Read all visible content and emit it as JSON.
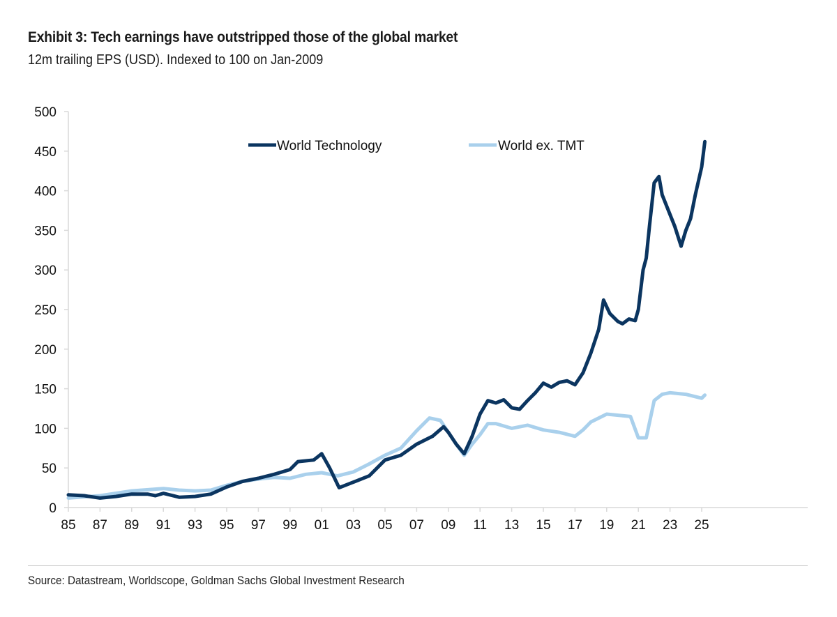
{
  "header": {
    "title": "Exhibit 3: Tech earnings have outstripped those of the global market",
    "subtitle": "12m trailing EPS (USD). Indexed to 100 on Jan-2009"
  },
  "footer": {
    "source": "Source: Datastream, Worldscope, Goldman Sachs Global Investment Research"
  },
  "chart_data": {
    "type": "line",
    "title": "Exhibit 3: Tech earnings have outstripped those of the global market",
    "subtitle": "12m trailing EPS (USD). Indexed to 100 on Jan-2009",
    "xlabel": "",
    "ylabel": "",
    "xlim": [
      1985,
      2026.3
    ],
    "ylim": [
      0,
      500
    ],
    "yticks": [
      0,
      50,
      100,
      150,
      200,
      250,
      300,
      350,
      400,
      450,
      500
    ],
    "xticks": [
      1985,
      1987,
      1989,
      1991,
      1993,
      1995,
      1997,
      1999,
      2001,
      2003,
      2005,
      2007,
      2009,
      2011,
      2013,
      2015,
      2017,
      2019,
      2021,
      2023,
      2025
    ],
    "xtick_labels": [
      "85",
      "87",
      "89",
      "91",
      "93",
      "95",
      "97",
      "99",
      "01",
      "03",
      "05",
      "07",
      "09",
      "11",
      "13",
      "15",
      "17",
      "19",
      "21",
      "23",
      "25"
    ],
    "grid": false,
    "legend": "top-center",
    "series": [
      {
        "name": "World Technology",
        "color": "#0b3560",
        "x": [
          1985,
          1986,
          1987,
          1988,
          1989,
          1990,
          1990.5,
          1991,
          1992,
          1993,
          1994,
          1995,
          1996,
          1997,
          1998,
          1999,
          1999.5,
          2000.5,
          2001,
          2001.5,
          2002.1,
          2003,
          2004,
          2005,
          2006,
          2007,
          2008,
          2008.7,
          2009,
          2009.5,
          2010,
          2010.5,
          2011,
          2011.5,
          2012,
          2012.5,
          2013,
          2013.5,
          2014,
          2014.5,
          2015,
          2015.5,
          2016,
          2016.5,
          2017,
          2017.5,
          2018,
          2018.5,
          2018.8,
          2019.2,
          2019.7,
          2020,
          2020.4,
          2020.8,
          2021,
          2021.3,
          2021.5,
          2021.7,
          2022,
          2022.3,
          2022.5,
          2023,
          2023.3,
          2023.7,
          2024,
          2024.3,
          2024.6,
          2025,
          2025.2
        ],
        "values": [
          16,
          15,
          12,
          14,
          17,
          17,
          15,
          18,
          13,
          14,
          17,
          26,
          33,
          37,
          42,
          48,
          58,
          60,
          68,
          50,
          25,
          32,
          40,
          60,
          66,
          80,
          90,
          102,
          95,
          80,
          68,
          90,
          118,
          135,
          132,
          136,
          126,
          124,
          135,
          145,
          157,
          152,
          158,
          160,
          155,
          170,
          195,
          225,
          262,
          245,
          235,
          232,
          238,
          236,
          250,
          300,
          315,
          355,
          410,
          418,
          395,
          370,
          355,
          330,
          350,
          365,
          395,
          430,
          462
        ]
      },
      {
        "name": "World ex. TMT",
        "color": "#a9d0ec",
        "x": [
          1985,
          1987,
          1989,
          1991,
          1992,
          1993,
          1994,
          1995,
          1996,
          1997,
          1998,
          1999,
          2000,
          2001,
          2002,
          2003,
          2004,
          2005,
          2006,
          2007,
          2007.8,
          2008.5,
          2009,
          2009.5,
          2010,
          2010.5,
          2011,
          2011.5,
          2012,
          2013,
          2014,
          2015,
          2016,
          2017,
          2017.5,
          2018,
          2019,
          2020,
          2020.5,
          2021,
          2021.5,
          2022,
          2022.5,
          2023,
          2024,
          2025,
          2025.2
        ],
        "values": [
          12,
          15,
          21,
          24,
          22,
          21,
          22,
          28,
          33,
          36,
          38,
          37,
          42,
          44,
          40,
          45,
          55,
          66,
          75,
          97,
          113,
          110,
          95,
          80,
          66,
          80,
          92,
          106,
          106,
          100,
          104,
          98,
          95,
          90,
          98,
          108,
          118,
          116,
          115,
          88,
          88,
          135,
          143,
          145,
          143,
          138,
          142
        ]
      }
    ]
  }
}
